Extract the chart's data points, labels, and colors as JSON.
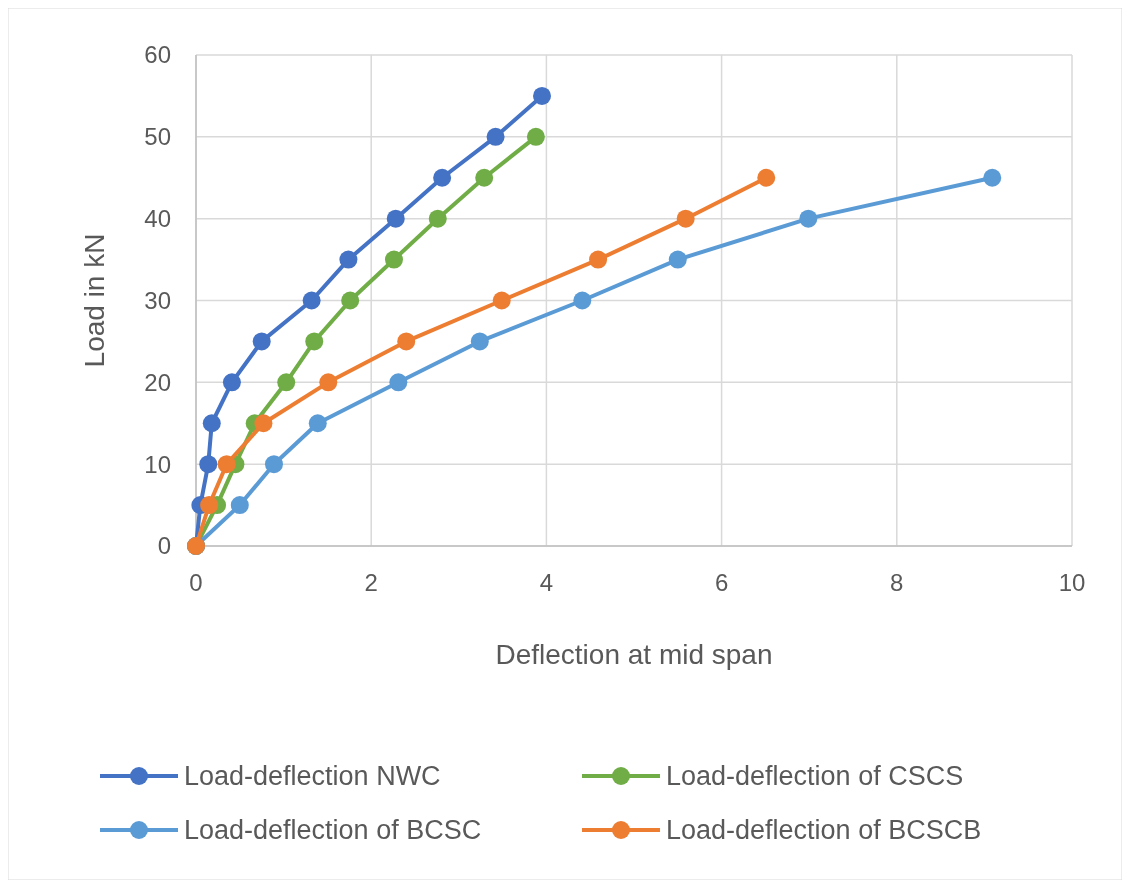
{
  "chart_data": {
    "type": "line",
    "xlabel": "Deflection at mid span",
    "ylabel": "Load in kN",
    "xlim": [
      0,
      10
    ],
    "xticks": [
      0,
      2,
      4,
      6,
      8,
      10
    ],
    "ylim": [
      0,
      60
    ],
    "yticks": [
      0,
      10,
      20,
      30,
      40,
      50,
      60
    ],
    "grid": true,
    "legend": "bottom",
    "marker": "circle",
    "line_style": "solid",
    "series": [
      {
        "name": "Load-deflection NWC",
        "color": "#4472c4",
        "x": [
          0,
          0.05,
          0.14,
          0.18,
          0.41,
          0.75,
          1.32,
          1.74,
          2.28,
          2.81,
          3.42,
          3.95
        ],
        "values": [
          0,
          5,
          10,
          15,
          20,
          25,
          30,
          35,
          40,
          45,
          50,
          55
        ]
      },
      {
        "name": "Load-deflection of CSCS",
        "color": "#70ad47",
        "x": [
          0,
          0.24,
          0.45,
          0.67,
          1.03,
          1.35,
          1.76,
          2.26,
          2.76,
          3.29,
          3.88
        ],
        "values": [
          0,
          5,
          10,
          15,
          20,
          25,
          30,
          35,
          40,
          45,
          50
        ]
      },
      {
        "name": "Load-deflection of BCSC",
        "color": "#5b9bd5",
        "x": [
          0,
          0.5,
          0.89,
          1.39,
          2.31,
          3.24,
          4.41,
          5.5,
          6.99,
          9.09
        ],
        "values": [
          0,
          5,
          10,
          15,
          20,
          25,
          30,
          35,
          40,
          45
        ]
      },
      {
        "name": "Load-deflection of BCSCB",
        "color": "#ed7d31",
        "x": [
          0,
          0.15,
          0.35,
          0.77,
          1.51,
          2.4,
          3.49,
          4.59,
          5.59,
          6.51
        ],
        "values": [
          0,
          5,
          10,
          15,
          20,
          25,
          30,
          35,
          40,
          45
        ]
      }
    ]
  }
}
